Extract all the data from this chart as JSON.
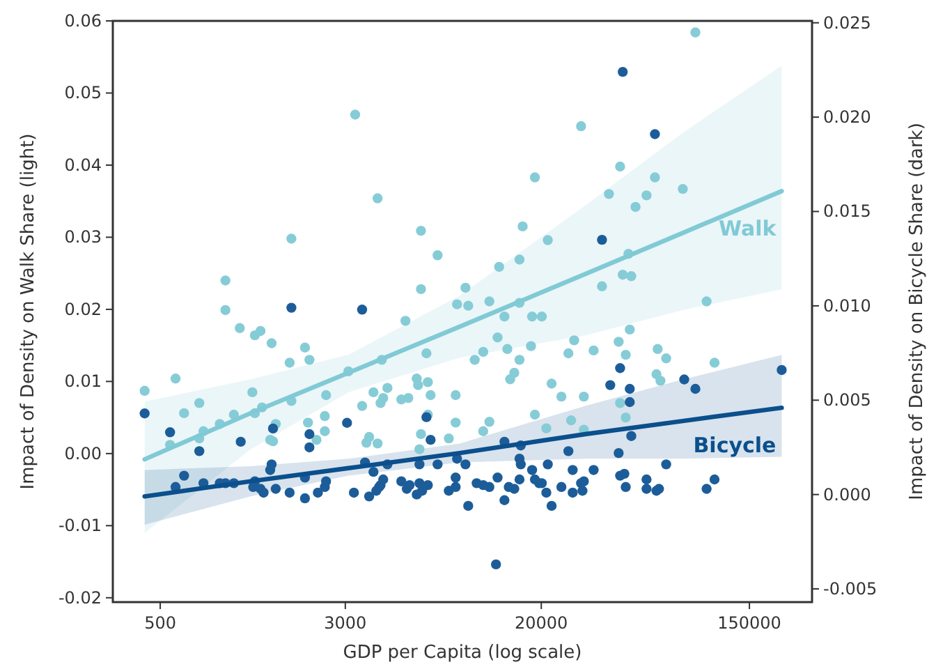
{
  "chart_data": {
    "type": "scatter",
    "xlabel": "GDP per Capita (log scale)",
    "ylabel": "Impact of Density on Walk Share (light)",
    "y2label": "Impact of Density on Bicycle Share (dark)",
    "log": "x",
    "grid": false,
    "legend": false,
    "xlim": [
      316,
      275000
    ],
    "xticks": [
      500,
      3000,
      20000,
      150000
    ],
    "ylim": [
      -0.0206,
      0.06
    ],
    "yticks": [
      -0.02,
      -0.01,
      {
        "value": 0,
        "label": "0.00"
      },
      0.01,
      0.02,
      0.03,
      0.04,
      0.05,
      0.06
    ],
    "y2lim": [
      -0.0057,
      0.0251
    ],
    "y2ticks": [
      -0.005,
      {
        "value": 0,
        "label": "0.000"
      },
      0.005,
      {
        "value": 0.01,
        "label": "0.010"
      },
      0.015,
      {
        "value": 0.02,
        "label": "0.020"
      },
      0.025
    ],
    "series": [
      {
        "marker": "circle",
        "color": "#86ccd7",
        "x": [
          1780,
          940,
          940,
          3300,
          4100,
          6240,
          7330,
          6240,
          8850,
          9860,
          9600,
          12100,
          13300,
          16200,
          16700,
          21300,
          18800,
          29400,
          16200,
          18300,
          14000,
          20100,
          5370,
          88900,
          42900,
          60100,
          38500,
          55400,
          49800,
          78700,
          46500,
          44000,
          47800,
          36000,
          99100,
          1080,
          1250,
          1320,
          1470,
          1750,
          2030,
          2120,
          430,
          580,
          630,
          730,
          550,
          730,
          760,
          890,
          1020,
          1220,
          1250,
          1340,
          1530,
          1450,
          1490,
          1780,
          2090,
          2270,
          2460,
          2460,
          2490,
          6580,
          4270,
          3090,
          3530,
          3940,
          4220,
          4330,
          4510,
          5160,
          5520,
          5990,
          6070,
          6670,
          6850,
          8730,
          6670,
          8730,
          6240,
          6150,
          8170,
          3680,
          4100,
          3780,
          10500,
          11400,
          13100,
          14400,
          14800,
          15400,
          16200,
          18100,
          22100,
          24300,
          26000,
          27500,
          18800,
          21000,
          26700,
          11400,
          12100,
          47100,
          42300,
          45300,
          61700,
          67000,
          33200,
          61000,
          63400,
          107000,
          30200,
          42900,
          45300,
          30200
        ],
        "values": [
          0.0298,
          0.024,
          0.0199,
          0.047,
          0.0354,
          0.0309,
          0.0275,
          0.0228,
          0.0207,
          0.0205,
          0.023,
          0.0211,
          0.0259,
          0.0269,
          0.0315,
          0.0296,
          0.0383,
          0.0454,
          0.0209,
          0.019,
          0.019,
          0.019,
          0.0184,
          0.0584,
          0.0398,
          0.0383,
          0.036,
          0.0358,
          0.0342,
          0.0367,
          0.0277,
          0.0248,
          0.0246,
          0.0232,
          0.0211,
          0.0174,
          0.0164,
          0.017,
          0.0153,
          0.0126,
          0.0147,
          0.013,
          0.0087,
          0.0104,
          0.0056,
          0.007,
          0.0012,
          0.0021,
          0.0031,
          0.0041,
          0.0054,
          0.0085,
          0.0056,
          0.0064,
          0.0041,
          0.0019,
          0.0017,
          0.0073,
          0.0043,
          0.0019,
          0.0031,
          0.0052,
          0.0081,
          0.0139,
          0.013,
          0.0114,
          0.0066,
          0.0085,
          0.007,
          0.0077,
          0.0091,
          0.0075,
          0.0077,
          0.0104,
          0.0095,
          0.0099,
          0.0081,
          0.0081,
          0.0054,
          0.0043,
          0.0027,
          0.0006,
          0.0021,
          0.0015,
          0.0014,
          0.0023,
          0.013,
          0.0141,
          0.0161,
          0.0145,
          0.0103,
          0.0112,
          0.013,
          0.0149,
          0.0097,
          0.0079,
          0.0139,
          0.0157,
          0.0054,
          0.0035,
          0.0046,
          0.0031,
          0.0044,
          0.0172,
          0.0155,
          0.0137,
          0.0145,
          0.0132,
          0.0143,
          0.011,
          0.0101,
          0.0126,
          0.0079,
          0.007,
          0.005,
          0.0033
        ]
      },
      {
        "type": "line",
        "marker": "none",
        "name": "Walk",
        "color": "#80cad5",
        "x": [
          430,
          1200,
          3090,
          9080,
          30600,
          78700,
          205000
        ],
        "values": [
          -0.0008,
          0.0056,
          0.0112,
          0.0176,
          0.0249,
          0.0306,
          0.0364
        ],
        "upper": [
          0.0072,
          0.0103,
          0.0137,
          0.0219,
          0.0344,
          0.0445,
          0.0538
        ],
        "lower": [
          -0.011,
          0.0006,
          0.0085,
          0.0133,
          0.0164,
          0.0199,
          0.0228
        ]
      },
      {
        "marker": "circle",
        "axis": "y2",
        "color": "#1c5d99",
        "x": [
          1780,
          430,
          550,
          730,
          1090,
          1490,
          2120,
          2120,
          1470,
          1450,
          630,
          580,
          760,
          890,
          940,
          1020,
          1250,
          1230,
          1320,
          1360,
          1530,
          1750,
          2030,
          2030,
          2300,
          2460,
          2490,
          3050,
          3530,
          44000,
          60100,
          36000,
          6580,
          6850,
          3630,
          3940,
          4510,
          6150,
          7330,
          8850,
          9600,
          14000,
          16400,
          16200,
          16400,
          18300,
          21300,
          26000,
          27100,
          3260,
          3780,
          4050,
          4220,
          4330,
          4160,
          5160,
          5440,
          5590,
          5990,
          6150,
          6310,
          6670,
          8170,
          8730,
          8730,
          9860,
          10700,
          11400,
          12100,
          13100,
          14000,
          14600,
          15400,
          16200,
          18800,
          19600,
          20100,
          21000,
          22100,
          24300,
          27100,
          29400,
          12900,
          42900,
          39000,
          47100,
          47100,
          79800,
          88900,
          205000,
          47800,
          42300,
          67000,
          33200,
          42900,
          44700,
          45300,
          30200,
          29800,
          55400,
          55400,
          61000,
          62500,
          99100,
          107000
        ],
        "values": [
          0.0099,
          0.0043,
          0.0033,
          0.0023,
          0.0028,
          0.0035,
          0.0025,
          0.0032,
          0.0016,
          0.0013,
          0.001,
          0.0004,
          0.0006,
          0.0006,
          0.0006,
          0.0006,
          0.0007,
          0.0004,
          0.0003,
          0.0001,
          0.0003,
          0.0001,
          0.0009,
          -0.0002,
          0.0001,
          0.0004,
          0.0007,
          0.0038,
          0.0098,
          0.0224,
          0.0191,
          0.0135,
          0.0041,
          0.0029,
          0.0017,
          0.0012,
          0.0016,
          0.0016,
          0.0016,
          0.0019,
          0.0016,
          0.0028,
          0.0026,
          0.0019,
          0.0016,
          0.0013,
          0.0016,
          0.0023,
          0.0013,
          0.0001,
          -0.0001,
          0.0002,
          0.0005,
          0.0008,
          0.0004,
          0.0007,
          0.0003,
          0.0005,
          0,
          0.0006,
          0.0002,
          0.0005,
          0.0002,
          0.0004,
          0.0009,
          -0.0006,
          0.0006,
          0.0005,
          0.0004,
          0.0009,
          -0.0003,
          0.0004,
          0.0003,
          0.0008,
          0.0008,
          0.0006,
          0.0006,
          0.0001,
          -0.0006,
          0.0004,
          0.0001,
          0.0006,
          -0.0037,
          0.0067,
          0.0058,
          0.0056,
          0.0049,
          0.0061,
          0.0056,
          0.0066,
          0.0031,
          0.0022,
          0.0016,
          0.0013,
          0.001,
          0.0011,
          0.0004,
          0.0007,
          0.0002,
          0.0008,
          0.0003,
          0.0002,
          0.0003,
          0.0003,
          0.0008
        ]
      },
      {
        "type": "line",
        "marker": "none",
        "axis": "y2",
        "name": "Bicycle",
        "color": "#0b4f8c",
        "x": [
          430,
          1200,
          3090,
          9080,
          30600,
          78700,
          205000
        ],
        "values": [
          -0.0001,
          0.0007,
          0.0014,
          0.0022,
          0.0032,
          0.0039,
          0.0046
        ],
        "upper": [
          0.0013,
          0.0015,
          0.0019,
          0.0027,
          0.0047,
          0.0061,
          0.0074
        ],
        "lower": [
          -0.0016,
          -0.0001,
          0.001,
          0.0017,
          0.0019,
          0.0019,
          0.002
        ]
      }
    ]
  }
}
